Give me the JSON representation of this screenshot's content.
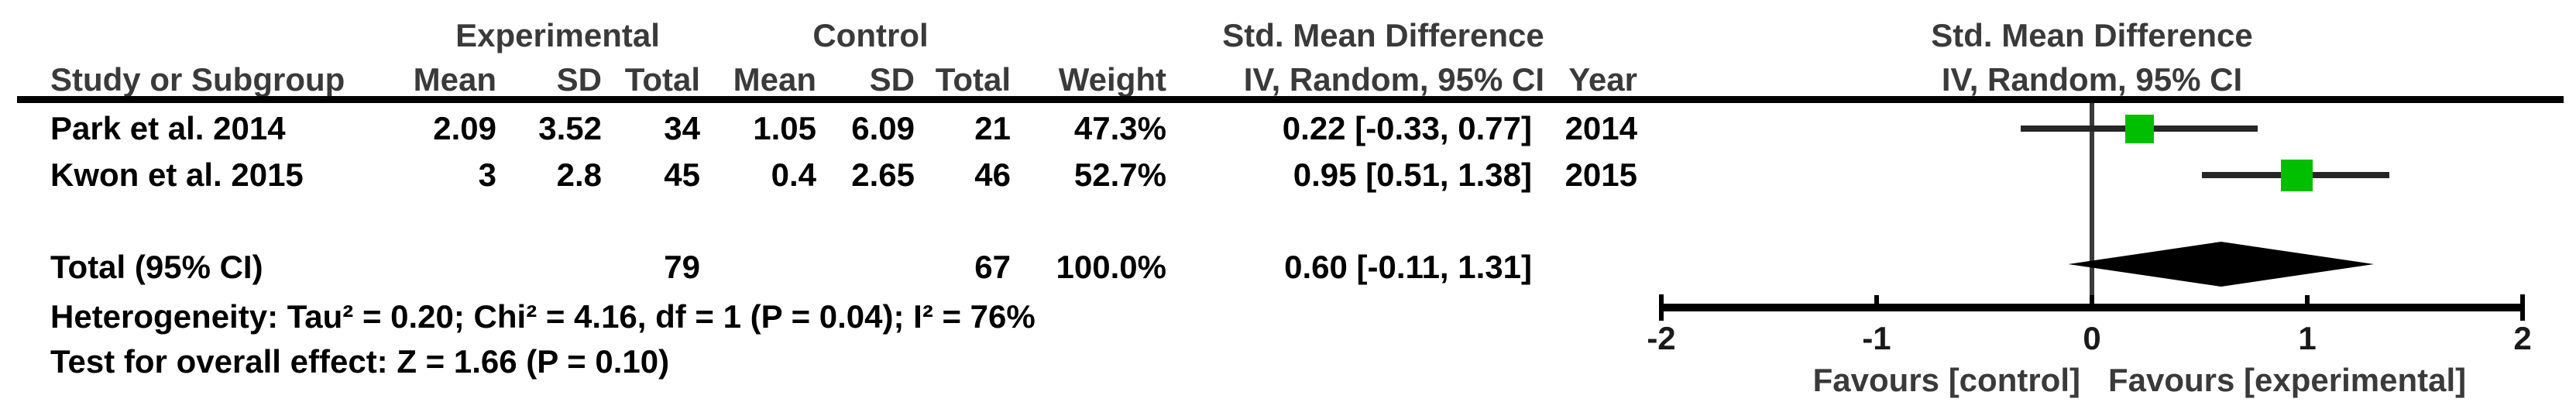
{
  "table": {
    "group1_header": "Experimental",
    "group2_header": "Control",
    "effect_header": "Std. Mean Difference",
    "effect_subheader": "IV, Random, 95% CI",
    "columns": {
      "study": "Study or Subgroup",
      "mean": "Mean",
      "sd": "SD",
      "total": "Total",
      "weight": "Weight",
      "ci": "IV, Random, 95% CI",
      "year": "Year"
    },
    "rows": [
      {
        "study": "Park et al. 2014",
        "exp_mean": "2.09",
        "exp_sd": "3.52",
        "exp_total": "34",
        "ctrl_mean": "1.05",
        "ctrl_sd": "6.09",
        "ctrl_total": "21",
        "weight": "47.3%",
        "ci": "0.22 [-0.33, 0.77]",
        "year": "2014"
      },
      {
        "study": "Kwon et al. 2015",
        "exp_mean": "3",
        "exp_sd": "2.8",
        "exp_total": "45",
        "ctrl_mean": "0.4",
        "ctrl_sd": "2.65",
        "ctrl_total": "46",
        "weight": "52.7%",
        "ci": "0.95 [0.51, 1.38]",
        "year": "2015"
      }
    ],
    "total": {
      "label": "Total (95% CI)",
      "exp_total": "79",
      "ctrl_total": "67",
      "weight": "100.0%",
      "ci": "0.60 [-0.11, 1.31]"
    },
    "heterogeneity": "Heterogeneity: Tau² = 0.20; Chi² = 4.16, df = 1 (P = 0.04); I² = 76%",
    "overall_effect": "Test for overall effect: Z = 1.66 (P = 0.10)"
  },
  "plot": {
    "header": "Std. Mean Difference",
    "subheader": "IV, Random, 95% CI",
    "favours_left": "Favours [control]",
    "favours_right": "Favours [experimental]",
    "marker_color": "#00be00",
    "diamond_color": "#000000",
    "line_color": "#262626"
  },
  "chart_data": {
    "type": "forest",
    "effect_measure": "Std. Mean Difference",
    "method": "IV, Random, 95% CI",
    "studies": [
      {
        "name": "Park et al. 2014",
        "year": 2014,
        "exp": {
          "mean": 2.09,
          "sd": 3.52,
          "total": 34
        },
        "ctrl": {
          "mean": 1.05,
          "sd": 6.09,
          "total": 21
        },
        "weight_pct": 47.3,
        "est": 0.22,
        "ci_low": -0.33,
        "ci_high": 0.77
      },
      {
        "name": "Kwon et al. 2015",
        "year": 2015,
        "exp": {
          "mean": 3,
          "sd": 2.8,
          "total": 45
        },
        "ctrl": {
          "mean": 0.4,
          "sd": 2.65,
          "total": 46
        },
        "weight_pct": 52.7,
        "est": 0.95,
        "ci_low": 0.51,
        "ci_high": 1.38
      }
    ],
    "total": {
      "label": "Total (95% CI)",
      "exp_total": 79,
      "ctrl_total": 67,
      "weight_pct": 100.0,
      "est": 0.6,
      "ci_low": -0.11,
      "ci_high": 1.31
    },
    "heterogeneity": {
      "tau2": 0.2,
      "chi2": 4.16,
      "df": 1,
      "p": 0.04,
      "i2_pct": 76
    },
    "overall_effect": {
      "z": 1.66,
      "p": 0.1
    },
    "xlim": [
      -2,
      2
    ],
    "ticks": [
      -2,
      -1,
      0,
      1,
      2
    ],
    "x_axis_labels": {
      "left": "Favours [control]",
      "right": "Favours [experimental]"
    }
  }
}
